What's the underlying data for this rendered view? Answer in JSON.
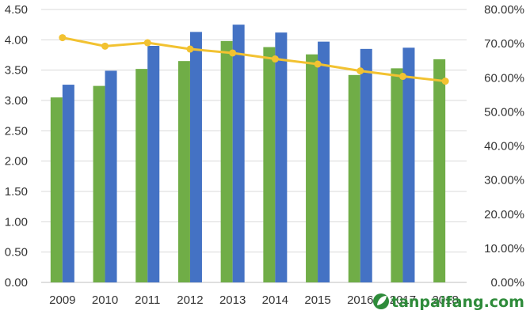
{
  "chart_data": {
    "type": "bar",
    "categories": [
      "2009",
      "2010",
      "2011",
      "2012",
      "2013",
      "2014",
      "2015",
      "2016",
      "2017",
      "2018"
    ],
    "series": [
      {
        "kind": "bar",
        "axis": "left",
        "color": "#70ad47",
        "values": [
          3.05,
          3.24,
          3.52,
          3.65,
          3.98,
          3.88,
          3.76,
          3.42,
          3.53,
          3.68
        ]
      },
      {
        "kind": "bar",
        "axis": "left",
        "color": "#4472c4",
        "values": [
          3.26,
          3.49,
          3.9,
          4.13,
          4.25,
          4.12,
          3.97,
          3.85,
          3.87,
          null
        ]
      },
      {
        "kind": "line",
        "axis": "right",
        "color": "#f2c231",
        "values": [
          0.7175,
          0.6925,
          0.7025,
          0.684,
          0.6725,
          0.655,
          0.64,
          0.62,
          0.604,
          0.59
        ]
      }
    ],
    "ylim": [
      0,
      4.5
    ],
    "y_ticks": [
      "0.00",
      "0.50",
      "1.00",
      "1.50",
      "2.00",
      "2.50",
      "3.00",
      "3.50",
      "4.00",
      "4.50"
    ],
    "y2lim": [
      0,
      0.8
    ],
    "y2_ticks": [
      "0.00%",
      "10.00%",
      "20.00%",
      "30.00%",
      "40.00%",
      "50.00%",
      "60.00%",
      "70.00%",
      "80.00%"
    ],
    "grid": true,
    "title": "",
    "xlabel": "",
    "ylabel": "",
    "y2label": ""
  },
  "watermark": {
    "text": "tanpaifang.com",
    "icon": "leaf-logo-icon",
    "color": "#2e8b3a"
  }
}
